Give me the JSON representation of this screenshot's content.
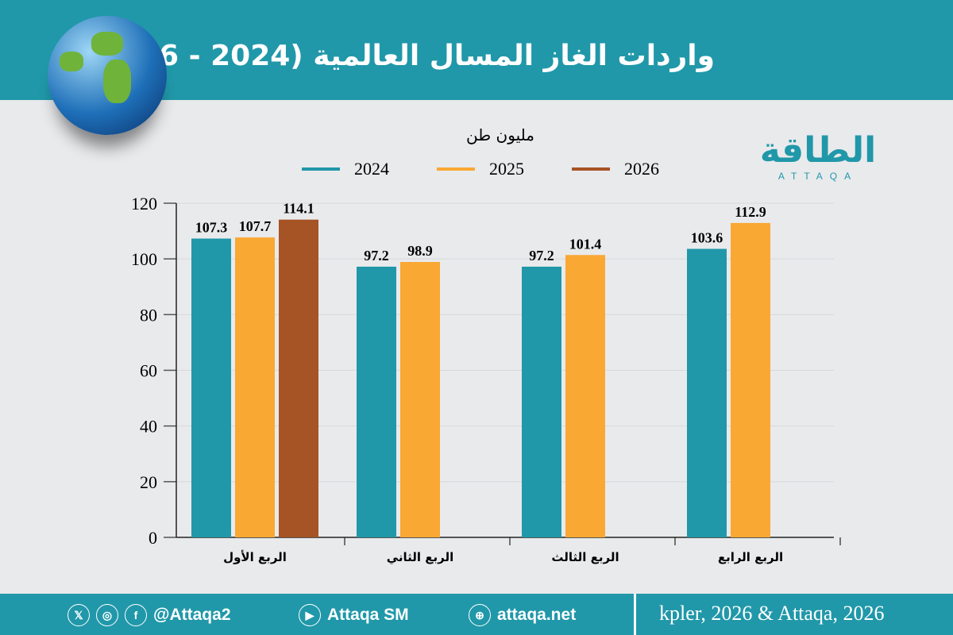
{
  "header": {
    "title": "واردات الغاز المسال العالمية (2024 - 2026)"
  },
  "logo": {
    "arabic": "الطاقة",
    "latin": "ATTAQA"
  },
  "chart_data": {
    "type": "bar",
    "unit_label": "مليون طن",
    "categories": [
      "الربع الأول",
      "الربع الثاني",
      "الربع الثالث",
      "الربع الرابع"
    ],
    "series": [
      {
        "name": "2024",
        "color": "#2098a9",
        "values": [
          107.3,
          97.2,
          97.2,
          103.6
        ]
      },
      {
        "name": "2025",
        "color": "#f9a833",
        "values": [
          107.7,
          98.9,
          101.4,
          112.9
        ]
      },
      {
        "name": "2026",
        "color": "#a65325",
        "values": [
          114.1,
          null,
          null,
          null
        ]
      }
    ],
    "ylim": [
      0,
      120
    ],
    "yticks": [
      0,
      20,
      40,
      60,
      80,
      100,
      120
    ],
    "grid": true,
    "legend": "top"
  },
  "footer": {
    "handle": "@Attaqa2",
    "youtube": "Attaqa SM",
    "website": "attaqa.net",
    "source": "kpler, 2026 & Attaqa, 2026",
    "icons": [
      "x-icon",
      "instagram-icon",
      "facebook-icon",
      "youtube-icon",
      "globe-icon"
    ]
  }
}
